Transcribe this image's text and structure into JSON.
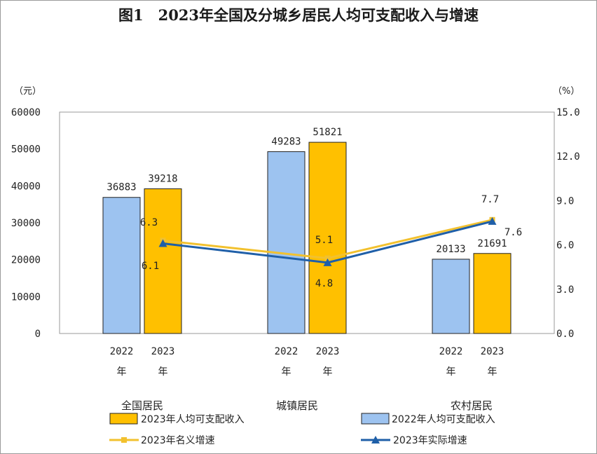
{
  "chart_data": {
    "type": "bar",
    "title": "图1　2023年全国及分城乡居民人均可支配收入与增速",
    "ylabel": "（元）",
    "y2label": "（%）",
    "ylim": [
      0,
      60000
    ],
    "y2lim": [
      0,
      15
    ],
    "yticks": [
      "0",
      "10000",
      "20000",
      "30000",
      "40000",
      "50000",
      "60000"
    ],
    "y2ticks": [
      "0.0",
      "3.0",
      "6.0",
      "9.0",
      "12.0",
      "15.0"
    ],
    "categories": [
      "全国居民",
      "城镇居民",
      "农村居民"
    ],
    "year_ticks": [
      [
        "2022",
        "年"
      ],
      [
        "2023",
        "年"
      ]
    ],
    "series": [
      {
        "name": "2023年人均可支配收入",
        "kind": "bar",
        "values": [
          39218,
          51821,
          21691
        ],
        "color": "#ffc000"
      },
      {
        "name": "2022年人均可支配收入",
        "kind": "bar",
        "values": [
          36883,
          49283,
          20133
        ],
        "color": "#9dc3f0"
      },
      {
        "name": "2023年名义增速",
        "kind": "line",
        "values": [
          6.3,
          5.1,
          7.7
        ],
        "color": "#f2c12e"
      },
      {
        "name": "2023年实际增速",
        "kind": "line",
        "values": [
          6.1,
          4.8,
          7.6
        ],
        "color": "#1f5fa8"
      }
    ],
    "bar_labels_2022": [
      "36883",
      "49283",
      "20133"
    ],
    "bar_labels_2023": [
      "39218",
      "51821",
      "21691"
    ],
    "nominal_labels": [
      "6.3",
      "5.1",
      "7.7"
    ],
    "real_labels": [
      "6.1",
      "4.8",
      "7.6"
    ],
    "grid": false,
    "legend_position": "bottom"
  }
}
